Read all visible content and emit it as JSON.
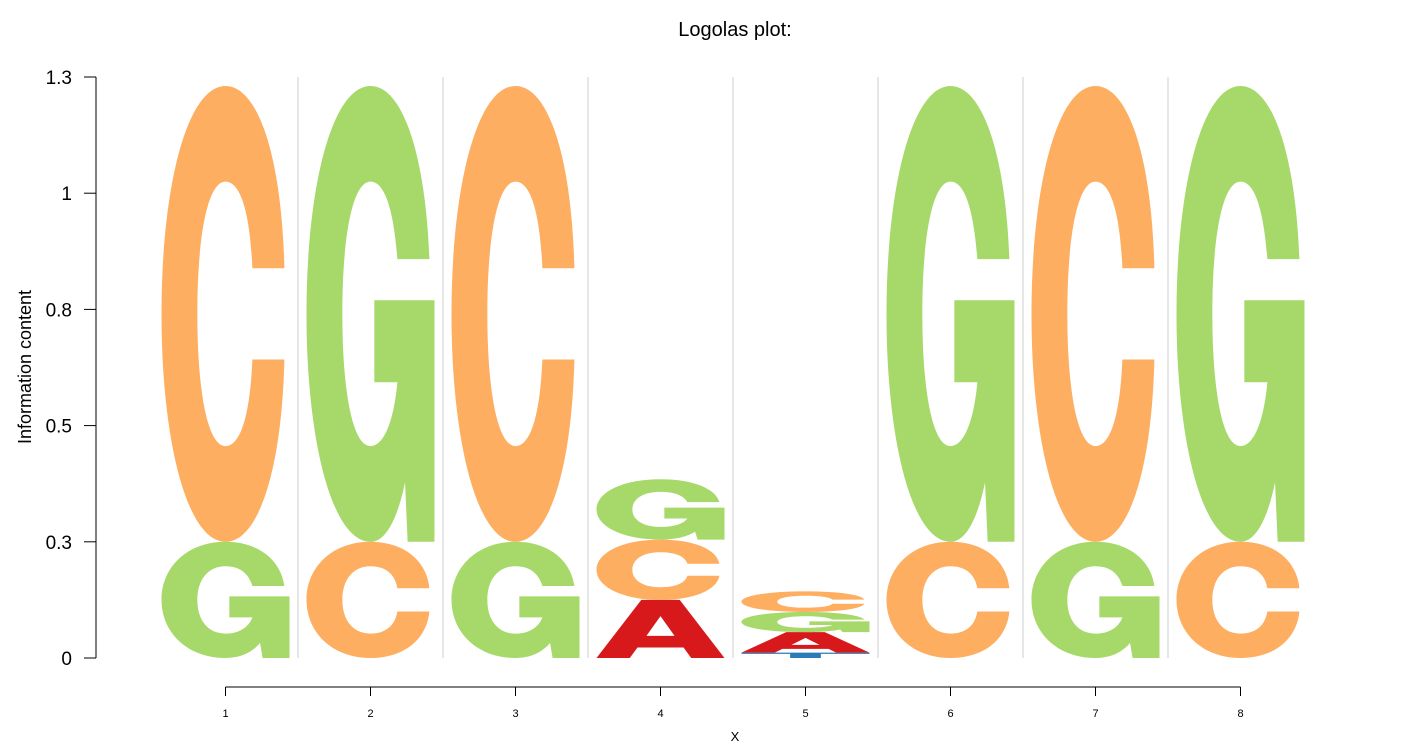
{
  "chart_data": {
    "type": "sequence-logo",
    "title": "Logolas plot:",
    "xlabel": "X",
    "ylabel": "Information content",
    "ylim": [
      0,
      1.3
    ],
    "y_ticks": [
      "0",
      "0.3",
      "0.5",
      "0.8",
      "1",
      "1.3"
    ],
    "y_tick_values": [
      0,
      0.26,
      0.52,
      0.78,
      1.04,
      1.3
    ],
    "x_ticks": [
      "1",
      "2",
      "3",
      "4",
      "5",
      "6",
      "7",
      "8"
    ],
    "letter_colors": {
      "A": "#d7191c",
      "C": "#fdae61",
      "G": "#a6d96a",
      "T": "#2c7bb6"
    },
    "positions": [
      {
        "pos": "1",
        "stack": [
          {
            "letter": "G",
            "height": 0.26
          },
          {
            "letter": "C",
            "height": 1.02
          }
        ]
      },
      {
        "pos": "2",
        "stack": [
          {
            "letter": "C",
            "height": 0.26
          },
          {
            "letter": "G",
            "height": 1.02
          }
        ]
      },
      {
        "pos": "3",
        "stack": [
          {
            "letter": "G",
            "height": 0.26
          },
          {
            "letter": "C",
            "height": 1.02
          }
        ]
      },
      {
        "pos": "4",
        "stack": [
          {
            "letter": "A",
            "height": 0.13
          },
          {
            "letter": "C",
            "height": 0.135
          },
          {
            "letter": "G",
            "height": 0.135
          }
        ]
      },
      {
        "pos": "5",
        "stack": [
          {
            "letter": "T",
            "height": 0.012
          },
          {
            "letter": "A",
            "height": 0.046
          },
          {
            "letter": "G",
            "height": 0.045
          },
          {
            "letter": "C",
            "height": 0.046
          }
        ]
      },
      {
        "pos": "6",
        "stack": [
          {
            "letter": "C",
            "height": 0.26
          },
          {
            "letter": "G",
            "height": 1.02
          }
        ]
      },
      {
        "pos": "7",
        "stack": [
          {
            "letter": "G",
            "height": 0.26
          },
          {
            "letter": "C",
            "height": 1.02
          }
        ]
      },
      {
        "pos": "8",
        "stack": [
          {
            "letter": "C",
            "height": 0.26
          },
          {
            "letter": "G",
            "height": 1.02
          }
        ]
      }
    ]
  }
}
